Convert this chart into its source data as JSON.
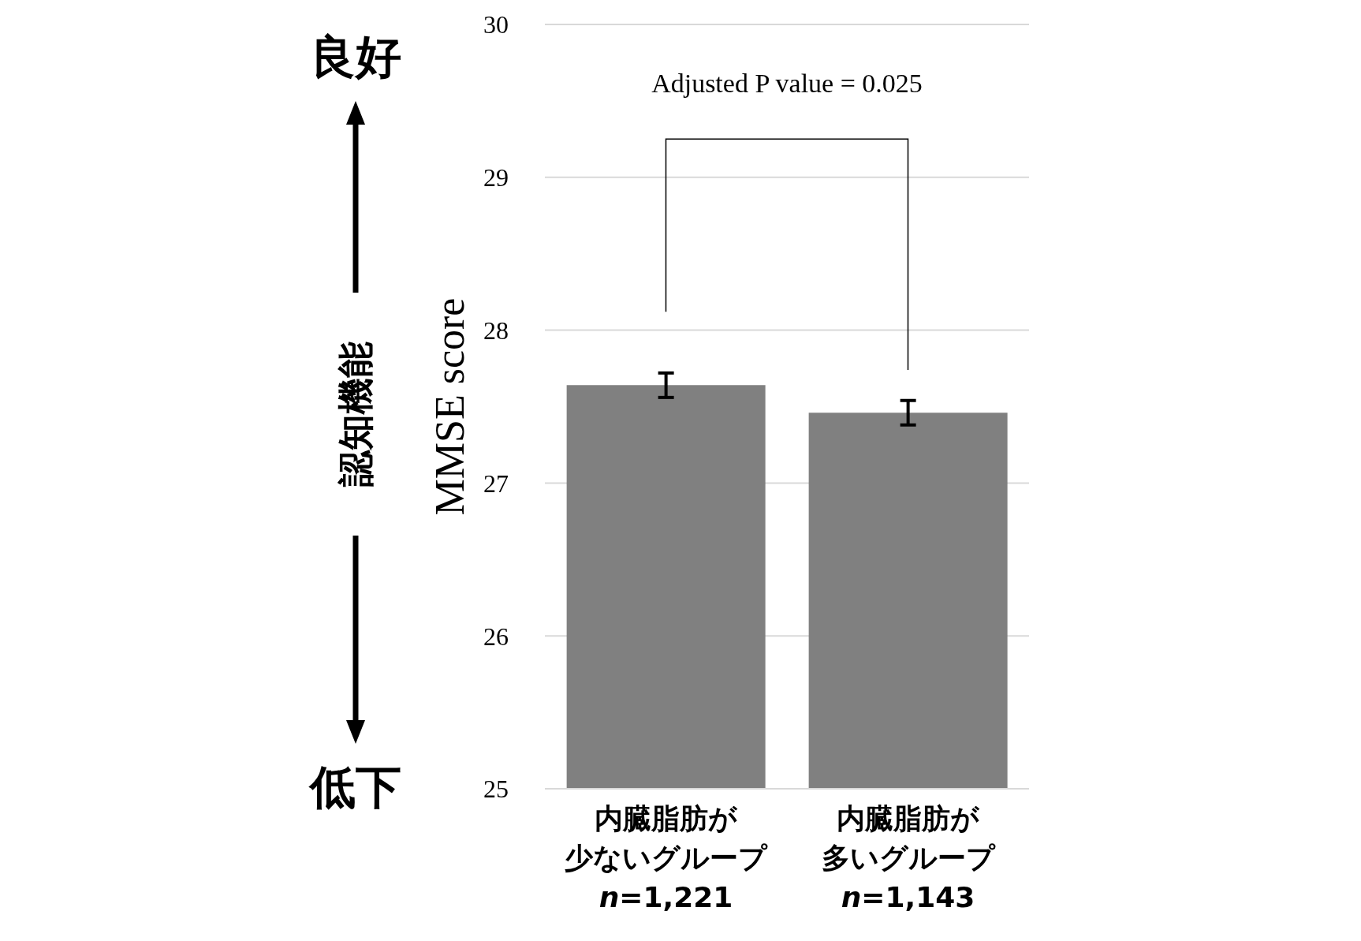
{
  "chart_data": {
    "type": "bar",
    "categories": [
      "内臓脂肪が少ないグループ\nn=1,221",
      "内臓脂肪が多いグループ\nn=1,143"
    ],
    "values": [
      27.64,
      27.46
    ],
    "errors": [
      0.08,
      0.08
    ],
    "color": "#808080",
    "ylabel": "MMSE score",
    "ylim": [
      25,
      30
    ],
    "yticks": [
      25,
      26,
      27,
      28,
      29,
      30
    ],
    "grid": "y",
    "annotations": [
      "Adjusted P value = 0.025",
      "良好",
      "認知機能",
      "低下"
    ]
  }
}
